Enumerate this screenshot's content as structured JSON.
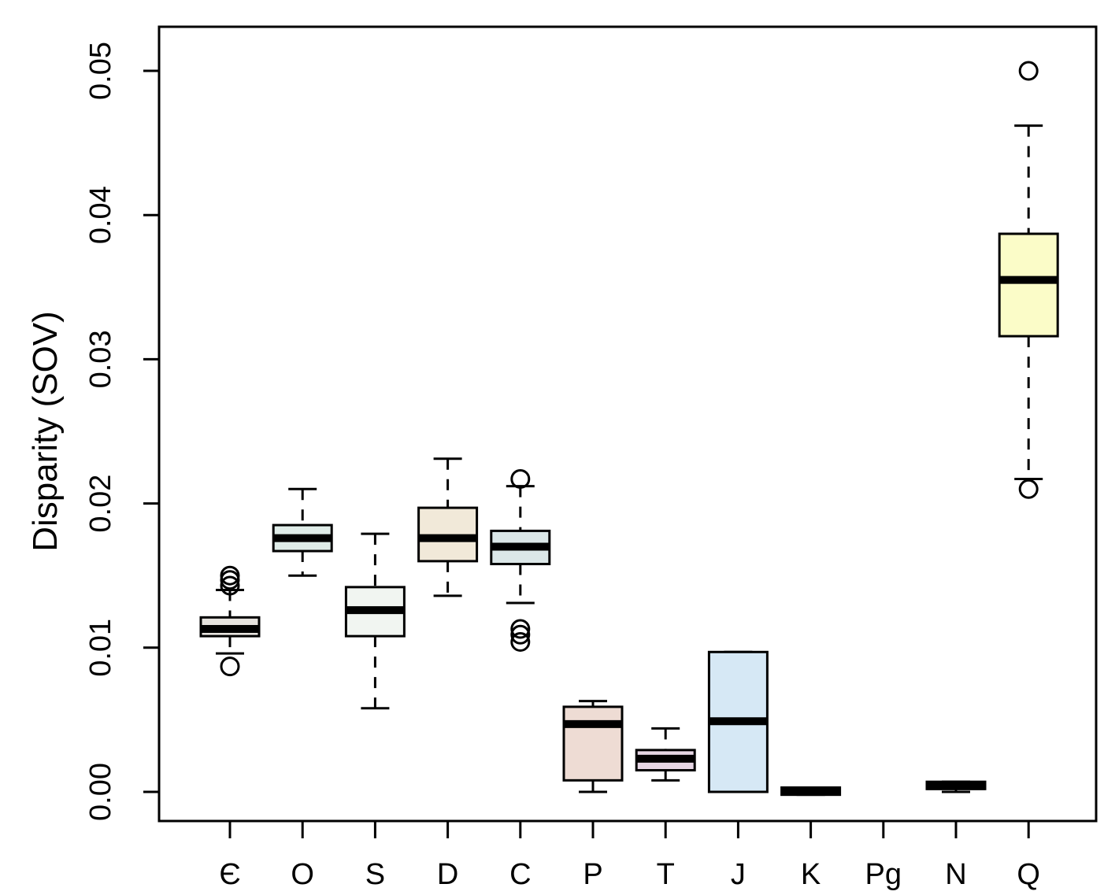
{
  "chart_data": {
    "type": "boxplot",
    "title": "",
    "xlabel": "",
    "ylabel": "Disparity (SOV)",
    "ylim": [
      -0.002,
      0.0535
    ],
    "yticks": [
      0.0,
      0.01,
      0.02,
      0.03,
      0.04,
      0.05
    ],
    "ytick_labels": [
      "0.00",
      "0.01",
      "0.02",
      "0.03",
      "0.04",
      "0.05"
    ],
    "grid": false,
    "categories": [
      "Є",
      "O",
      "S",
      "D",
      "C",
      "P",
      "T",
      "J",
      "K",
      "Pg",
      "N",
      "Q"
    ],
    "boxes": [
      {
        "label": "Є",
        "whisker_low": 0.0096,
        "q1": 0.0108,
        "median": 0.0113,
        "q3": 0.0121,
        "whisker_high": 0.014,
        "outliers": [
          0.0087,
          0.0143,
          0.0147,
          0.015
        ],
        "color": "#e6e3de"
      },
      {
        "label": "O",
        "whisker_low": 0.015,
        "q1": 0.0167,
        "median": 0.0176,
        "q3": 0.0185,
        "whisker_high": 0.021,
        "outliers": [],
        "color": "#dfece8"
      },
      {
        "label": "S",
        "whisker_low": 0.0058,
        "q1": 0.0108,
        "median": 0.0126,
        "q3": 0.0142,
        "whisker_high": 0.0179,
        "outliers": [],
        "color": "#f1f5f1"
      },
      {
        "label": "D",
        "whisker_low": 0.0136,
        "q1": 0.016,
        "median": 0.0176,
        "q3": 0.0197,
        "whisker_high": 0.0231,
        "outliers": [],
        "color": "#f1e9d9"
      },
      {
        "label": "C",
        "whisker_low": 0.0131,
        "q1": 0.0158,
        "median": 0.017,
        "q3": 0.0181,
        "whisker_high": 0.0212,
        "outliers": [
          0.0104,
          0.0109,
          0.0113,
          0.0217
        ],
        "color": "#dbe7e8"
      },
      {
        "label": "P",
        "whisker_low": 0.0,
        "q1": 0.0008,
        "median": 0.0047,
        "q3": 0.0059,
        "whisker_high": 0.0063,
        "outliers": [],
        "color": "#eedcd4"
      },
      {
        "label": "T",
        "whisker_low": 0.0008,
        "q1": 0.0015,
        "median": 0.0023,
        "q3": 0.0029,
        "whisker_high": 0.0044,
        "outliers": [],
        "color": "#e6d6e4"
      },
      {
        "label": "J",
        "whisker_low": 0.0,
        "q1": 0.0,
        "median": 0.0049,
        "q3": 0.0097,
        "whisker_high": 0.0097,
        "outliers": [],
        "color": "#d6e8f5"
      },
      {
        "label": "K",
        "whisker_low": -0.0002,
        "q1": -0.0002,
        "median": 0.0,
        "q3": 0.0003,
        "whisker_high": 0.0003,
        "outliers": [],
        "color": "#e5e5e5"
      },
      {
        "label": "Pg",
        "whisker_low": null,
        "q1": null,
        "median": null,
        "q3": null,
        "whisker_high": null,
        "outliers": [],
        "color": "#ffffff"
      },
      {
        "label": "N",
        "whisker_low": 0.0,
        "q1": 0.0002,
        "median": 0.0004,
        "q3": 0.0007,
        "whisker_high": 0.0007,
        "outliers": [],
        "color": "#e5e5e5"
      },
      {
        "label": "Q",
        "whisker_low": 0.0217,
        "q1": 0.0316,
        "median": 0.0355,
        "q3": 0.0387,
        "whisker_high": 0.0462,
        "outliers": [
          0.021,
          0.05
        ],
        "color": "#fbfcc8"
      }
    ]
  }
}
